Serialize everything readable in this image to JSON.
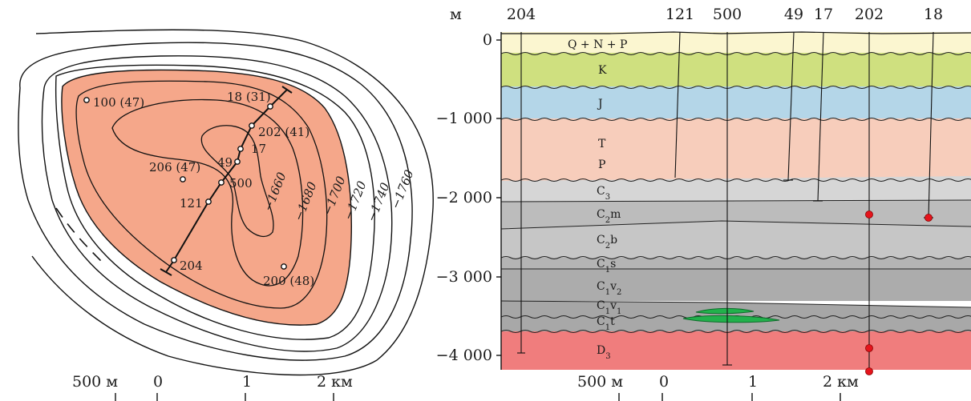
{
  "map": {
    "wells": [
      {
        "id": "100",
        "label": "100 (47)"
      },
      {
        "id": "18",
        "label": "18 (31)"
      },
      {
        "id": "202",
        "label": "202 (41)"
      },
      {
        "id": "17",
        "label": "17"
      },
      {
        "id": "49",
        "label": "49"
      },
      {
        "id": "500",
        "label": "500"
      },
      {
        "id": "206",
        "label": "206 (47)"
      },
      {
        "id": "121",
        "label": "121"
      },
      {
        "id": "204",
        "label": "204"
      },
      {
        "id": "200",
        "label": "200 (48)"
      }
    ],
    "contours": [
      "−1660",
      "−1680",
      "−1700",
      "−1720",
      "−1740",
      "−1760"
    ],
    "scale": {
      "labels": [
        "500 м",
        "0",
        "1",
        "2 км"
      ]
    }
  },
  "section": {
    "unit": "м",
    "wells": [
      "204",
      "121",
      "500",
      "49",
      "17",
      "202",
      "18"
    ],
    "depth_ticks": [
      "0",
      "−1 000",
      "−2 000",
      "−3 000",
      "−4 000"
    ],
    "layers": [
      {
        "code": "Q + N + P",
        "color": "#fbf6d0"
      },
      {
        "code": "K",
        "color": "#cfe07f"
      },
      {
        "code": "J",
        "color": "#b4d6e8"
      },
      {
        "code": "T",
        "color": "#f7cdbb"
      },
      {
        "code": "P",
        "color": "#f7cdbb"
      },
      {
        "code": "C3",
        "color": "#d6d6d6"
      },
      {
        "code": "C2m",
        "color": "#bcbcbc"
      },
      {
        "code": "C2b",
        "color": "#c6c6c6"
      },
      {
        "code": "C1s",
        "color": "#b4b4b4"
      },
      {
        "code": "C1v2",
        "color": "#acacac"
      },
      {
        "code": "C1v1",
        "color": "#a6a6a6"
      },
      {
        "code": "C1t",
        "color": "#a8a8a8"
      },
      {
        "code": "D3",
        "color": "#f07d7d"
      }
    ],
    "scale": {
      "labels": [
        "500 м",
        "0",
        "1",
        "2 км"
      ]
    }
  },
  "colors": {
    "oil_pool": "#f5a78a",
    "reservoir_lens": "#22b14c",
    "marker": "#e5141c"
  }
}
